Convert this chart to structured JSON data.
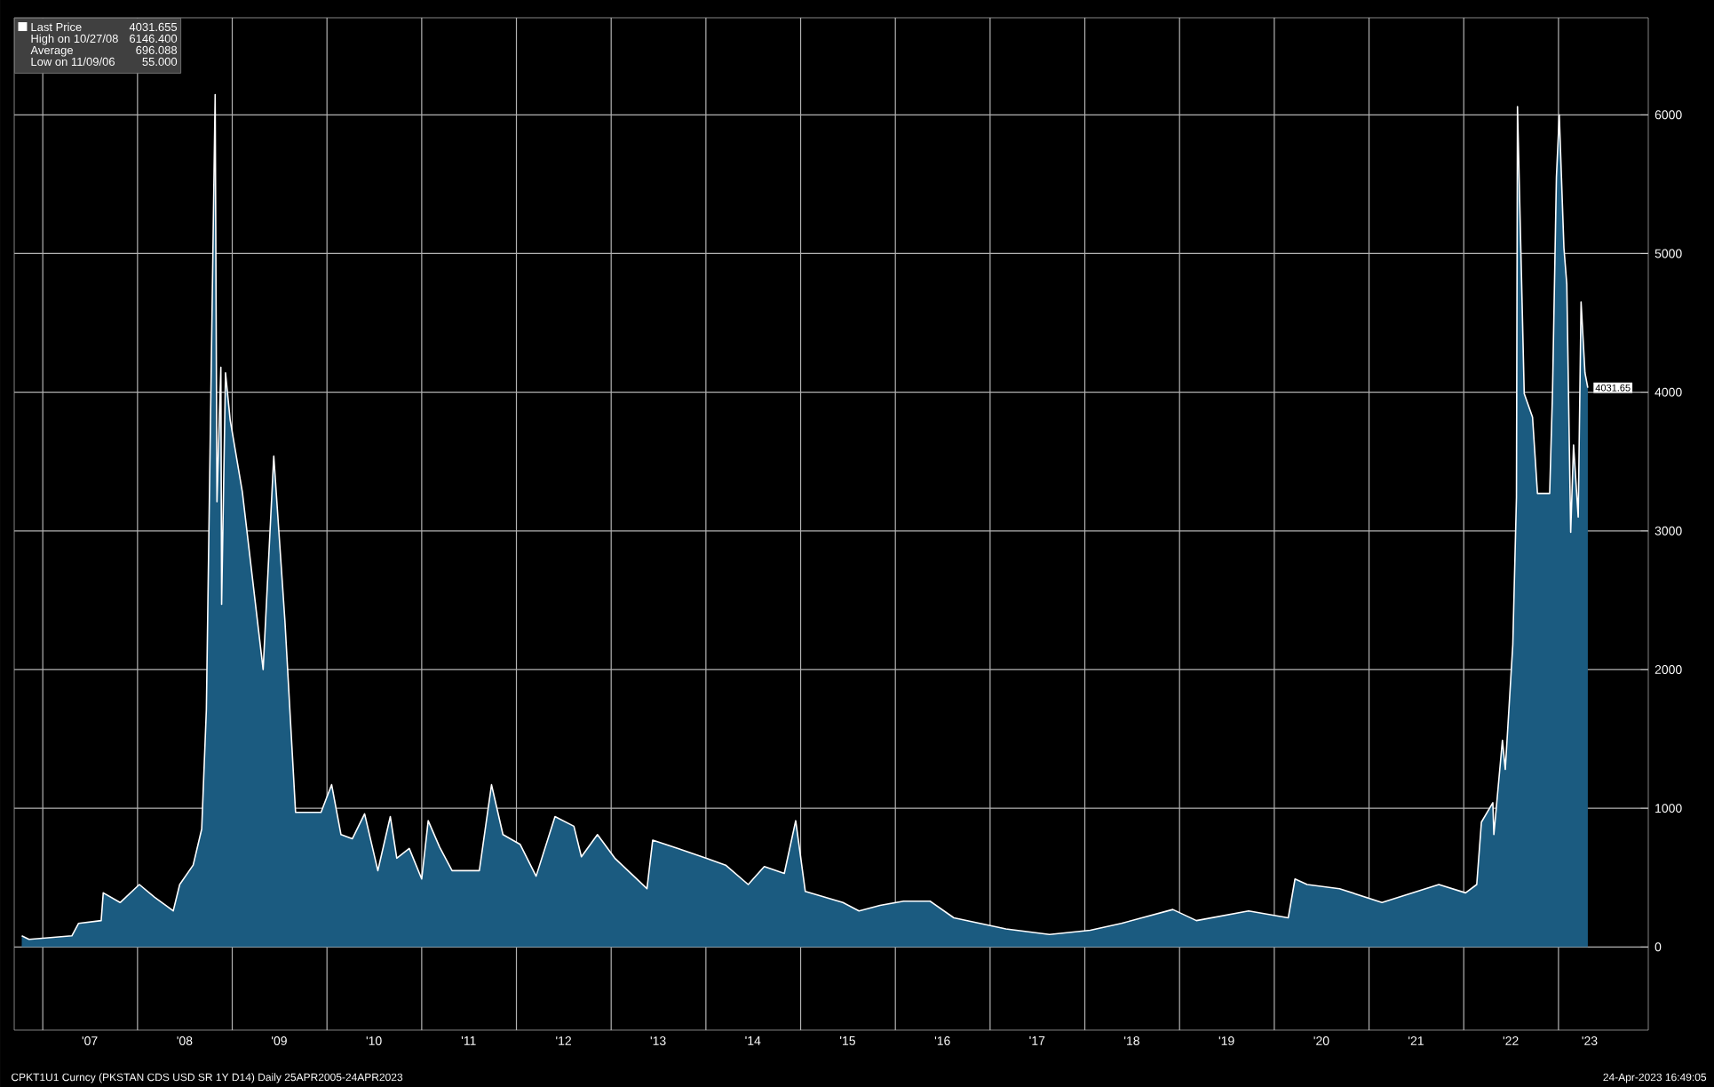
{
  "chart_data": {
    "type": "area",
    "x": [
      "2006-10-12",
      "2006-11-09",
      "2007-04-23",
      "2007-05-19",
      "2007-08-14",
      "2007-08-22",
      "2007-10-26",
      "2008-01-08",
      "2008-03-06",
      "2008-05-18",
      "2008-06-12",
      "2008-08-03",
      "2008-09-05",
      "2008-09-23",
      "2008-10-27",
      "2008-11-03",
      "2008-11-18",
      "2008-11-21",
      "2008-12-06",
      "2008-12-24",
      "2009-02-09",
      "2009-04-30",
      "2009-06-10",
      "2009-07-23",
      "2009-09-02",
      "2009-12-09",
      "2010-01-19",
      "2010-02-24",
      "2010-04-09",
      "2010-05-26",
      "2010-07-16",
      "2010-09-02",
      "2010-09-27",
      "2010-11-14",
      "2011-01-01",
      "2011-01-26",
      "2011-03-11",
      "2011-04-28",
      "2011-08-11",
      "2011-09-27",
      "2011-11-10",
      "2012-01-15",
      "2012-03-17",
      "2012-05-29",
      "2012-08-10",
      "2012-09-08",
      "2012-11-09",
      "2013-01-15",
      "2013-05-19",
      "2013-06-10",
      "2013-09-16",
      "2014-01-01",
      "2014-03-18",
      "2014-06-13",
      "2014-08-14",
      "2014-10-30",
      "2014-12-13",
      "2015-01-19",
      "2015-06-13",
      "2015-08-14",
      "2015-11-03",
      "2016-02-02",
      "2016-05-14",
      "2016-08-14",
      "2017-03-03",
      "2017-08-18",
      "2018-01-22",
      "2018-05-22",
      "2018-12-06",
      "2019-03-07",
      "2019-09-24",
      "2020-02-24",
      "2020-03-21",
      "2020-05-07",
      "2020-09-09",
      "2021-02-20",
      "2021-09-27",
      "2022-01-08",
      "2022-02-20",
      "2022-03-10",
      "2022-04-23",
      "2022-04-27",
      "2022-05-30",
      "2022-06-10",
      "2022-07-09",
      "2022-07-23",
      "2022-07-27",
      "2022-08-22",
      "2022-09-23",
      "2022-10-12",
      "2022-11-28",
      "2022-12-09",
      "2022-12-24",
      "2023-01-04",
      "2023-01-22",
      "2023-02-02",
      "2023-02-17",
      "2023-02-28",
      "2023-03-18",
      "2023-03-29",
      "2023-04-13",
      "2023-04-24"
    ],
    "series": [
      {
        "name": "Last Price",
        "color": "#1b5b80",
        "values": [
          80,
          55,
          80,
          170,
          190,
          390,
          320,
          450,
          360,
          260,
          450,
          590,
          850,
          1710,
          6146.4,
          3210,
          4180,
          2470,
          4140,
          3800,
          3280,
          2000,
          3540,
          2350,
          970,
          970,
          1170,
          810,
          780,
          960,
          550,
          940,
          640,
          710,
          490,
          910,
          720,
          550,
          550,
          1170,
          810,
          740,
          510,
          940,
          870,
          650,
          810,
          640,
          420,
          770,
          710,
          640,
          590,
          450,
          580,
          530,
          910,
          400,
          320,
          260,
          300,
          330,
          330,
          210,
          130,
          90,
          120,
          170,
          270,
          190,
          260,
          210,
          490,
          450,
          420,
          320,
          450,
          390,
          450,
          900,
          1040,
          810,
          1490,
          1280,
          2180,
          3240,
          6060,
          3990,
          3820,
          3270,
          3270,
          4000,
          5550,
          6000,
          5040,
          4780,
          2990,
          3620,
          3100,
          4650,
          4140,
          4031.655
        ]
      }
    ],
    "xlim": [
      "2006-09-13",
      "2023-12-13"
    ],
    "ylim": [
      -600,
      6700
    ],
    "xticks": [
      {
        "value": "2007",
        "label": null
      },
      {
        "value": "2007-07",
        "label": "'07"
      },
      {
        "value": "2008",
        "label": null
      },
      {
        "value": "2008-07",
        "label": "'08"
      },
      {
        "value": "2009",
        "label": null
      },
      {
        "value": "2009-07",
        "label": "'09"
      },
      {
        "value": "2010",
        "label": null
      },
      {
        "value": "2010-07",
        "label": "'10"
      },
      {
        "value": "2011",
        "label": null
      },
      {
        "value": "2011-07",
        "label": "'11"
      },
      {
        "value": "2012",
        "label": null
      },
      {
        "value": "2012-07",
        "label": "'12"
      },
      {
        "value": "2013",
        "label": null
      },
      {
        "value": "2013-07",
        "label": "'13"
      },
      {
        "value": "2014",
        "label": null
      },
      {
        "value": "2014-07",
        "label": "'14"
      },
      {
        "value": "2015",
        "label": null
      },
      {
        "value": "2015-07",
        "label": "'15"
      },
      {
        "value": "2016",
        "label": null
      },
      {
        "value": "2016-07",
        "label": "'16"
      },
      {
        "value": "2017",
        "label": null
      },
      {
        "value": "2017-07",
        "label": "'17"
      },
      {
        "value": "2018",
        "label": null
      },
      {
        "value": "2018-07",
        "label": "'18"
      },
      {
        "value": "2019",
        "label": null
      },
      {
        "value": "2019-07",
        "label": "'19"
      },
      {
        "value": "2020",
        "label": null
      },
      {
        "value": "2020-07",
        "label": "'20"
      },
      {
        "value": "2021",
        "label": null
      },
      {
        "value": "2021-07",
        "label": "'21"
      },
      {
        "value": "2022",
        "label": null
      },
      {
        "value": "2022-07",
        "label": "'22"
      },
      {
        "value": "2023",
        "label": null
      },
      {
        "value": "2023-05",
        "label": "'23"
      }
    ],
    "yticks": [
      0,
      1000,
      2000,
      3000,
      4000,
      5000,
      6000
    ],
    "grid": true,
    "legend": "top left",
    "annotations": [
      "4031.655",
      "High on 10/27/08",
      "6146.400",
      "Average",
      "696.088",
      "Low on 11/09/06",
      "55.000",
      "CPKT1U1 Curncy (PKSTAN CDS USD SR 1Y D14)  Daily 25APR2005-24APR2023",
      "24-Apr-2023 16:49:05",
      {
        "text": "4031.65",
        "x": "2023-04-24",
        "y": 4031.655
      }
    ]
  }
}
